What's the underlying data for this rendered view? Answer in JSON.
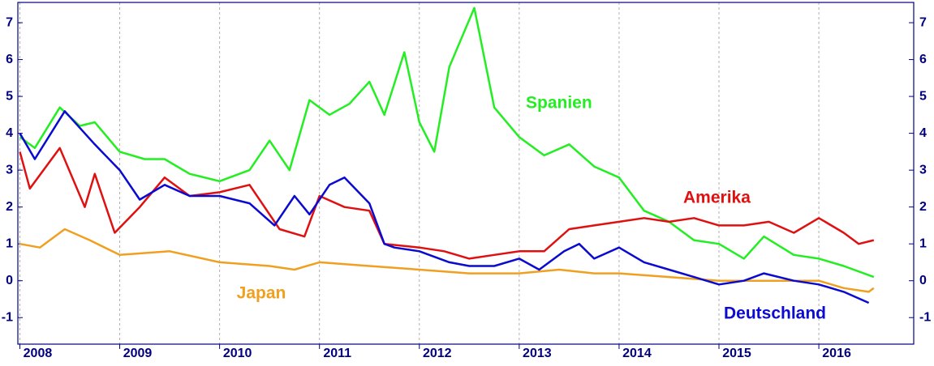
{
  "chart_data": {
    "type": "line",
    "xlim": [
      2007.98,
      2016.95
    ],
    "xticks": [
      2008,
      2009,
      2010,
      2011,
      2012,
      2013,
      2014,
      2015,
      2016
    ],
    "ylim": [
      -1.72,
      7.55
    ],
    "yticks": [
      -1,
      0,
      1,
      2,
      3,
      4,
      5,
      6,
      7
    ],
    "grid": true,
    "series": [
      {
        "name": "Spanien",
        "color": "#22ee22",
        "x": [
          2008.0,
          2008.15,
          2008.4,
          2008.6,
          2008.75,
          2009.0,
          2009.25,
          2009.45,
          2009.7,
          2010.0,
          2010.3,
          2010.5,
          2010.7,
          2010.9,
          2011.1,
          2011.3,
          2011.5,
          2011.65,
          2011.85,
          2012.0,
          2012.15,
          2012.3,
          2012.55,
          2012.75,
          2013.0,
          2013.25,
          2013.5,
          2013.75,
          2014.0,
          2014.25,
          2014.5,
          2014.75,
          2015.0,
          2015.25,
          2015.45,
          2015.75,
          2016.0,
          2016.25,
          2016.55
        ],
        "values": [
          3.9,
          3.6,
          4.7,
          4.2,
          4.3,
          3.5,
          3.3,
          3.3,
          2.9,
          2.7,
          3.0,
          3.8,
          3.0,
          4.9,
          4.5,
          4.8,
          5.4,
          4.5,
          6.2,
          4.3,
          3.5,
          5.8,
          7.4,
          4.7,
          3.9,
          3.4,
          3.7,
          3.1,
          2.8,
          1.9,
          1.6,
          1.1,
          1.0,
          0.6,
          1.2,
          0.7,
          0.6,
          0.4,
          0.1
        ]
      },
      {
        "name": "Amerika",
        "color": "#e01010",
        "x": [
          2008.0,
          2008.1,
          2008.4,
          2008.65,
          2008.75,
          2008.95,
          2009.2,
          2009.45,
          2009.7,
          2010.0,
          2010.3,
          2010.6,
          2010.85,
          2011.0,
          2011.25,
          2011.5,
          2011.65,
          2012.0,
          2012.25,
          2012.5,
          2012.75,
          2013.0,
          2013.25,
          2013.5,
          2013.75,
          2014.0,
          2014.25,
          2014.5,
          2014.75,
          2015.0,
          2015.25,
          2015.5,
          2015.75,
          2016.0,
          2016.25,
          2016.4,
          2016.55
        ],
        "values": [
          3.5,
          2.5,
          3.6,
          2.0,
          2.9,
          1.3,
          2.0,
          2.8,
          2.3,
          2.4,
          2.6,
          1.4,
          1.2,
          2.3,
          2.0,
          1.9,
          1.0,
          0.9,
          0.8,
          0.6,
          0.7,
          0.8,
          0.8,
          1.4,
          1.5,
          1.6,
          1.7,
          1.6,
          1.7,
          1.5,
          1.5,
          1.6,
          1.3,
          1.7,
          1.3,
          1.0,
          1.1
        ]
      },
      {
        "name": "Japan",
        "color": "#f0a020",
        "x": [
          2008.0,
          2008.2,
          2008.45,
          2008.7,
          2009.0,
          2009.5,
          2010.0,
          2010.5,
          2010.75,
          2011.0,
          2011.5,
          2012.0,
          2012.5,
          2013.0,
          2013.4,
          2013.75,
          2014.0,
          2014.5,
          2015.0,
          2015.5,
          2016.0,
          2016.25,
          2016.5,
          2016.55
        ],
        "values": [
          1.0,
          0.9,
          1.4,
          1.1,
          0.7,
          0.8,
          0.5,
          0.4,
          0.3,
          0.5,
          0.4,
          0.3,
          0.2,
          0.2,
          0.3,
          0.2,
          0.2,
          0.1,
          0.0,
          0.0,
          0.0,
          -0.2,
          -0.3,
          -0.2
        ]
      },
      {
        "name": "Deutschland",
        "color": "#0a0ad0",
        "x": [
          2008.0,
          2008.15,
          2008.45,
          2008.75,
          2009.0,
          2009.2,
          2009.45,
          2009.7,
          2010.0,
          2010.3,
          2010.55,
          2010.75,
          2010.9,
          2011.1,
          2011.25,
          2011.5,
          2011.65,
          2011.75,
          2012.0,
          2012.3,
          2012.5,
          2012.75,
          2013.0,
          2013.2,
          2013.45,
          2013.6,
          2013.75,
          2014.0,
          2014.25,
          2014.5,
          2014.75,
          2015.0,
          2015.25,
          2015.45,
          2015.75,
          2016.0,
          2016.25,
          2016.5
        ],
        "values": [
          4.0,
          3.3,
          4.6,
          3.7,
          3.0,
          2.2,
          2.6,
          2.3,
          2.3,
          2.1,
          1.5,
          2.3,
          1.8,
          2.6,
          2.8,
          2.1,
          1.0,
          0.9,
          0.8,
          0.5,
          0.4,
          0.4,
          0.6,
          0.3,
          0.8,
          1.0,
          0.6,
          0.9,
          0.5,
          0.3,
          0.1,
          -0.1,
          0.0,
          0.2,
          0.0,
          -0.1,
          -0.3,
          -0.6
        ]
      }
    ]
  }
}
